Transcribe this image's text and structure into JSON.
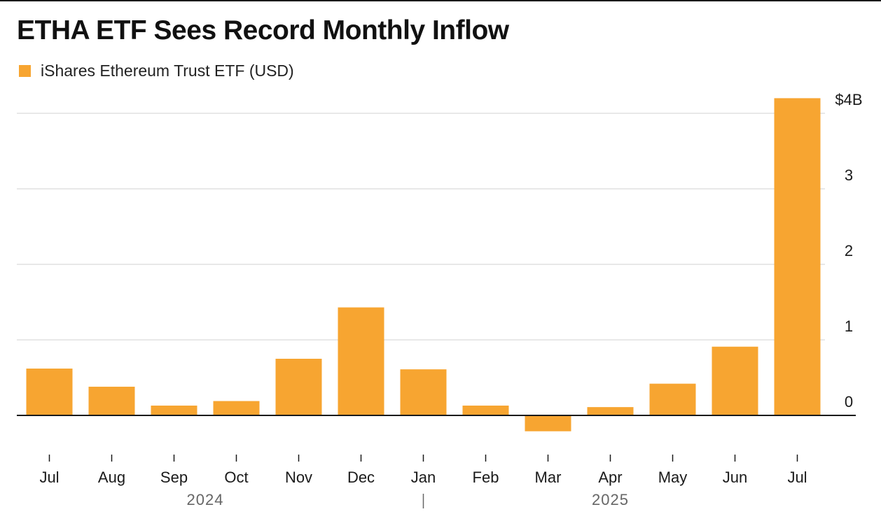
{
  "title": "ETHA ETF Sees Record Monthly Inflow",
  "colors": {
    "bar": "#F7A531",
    "grid": "#d9d9d9",
    "zero_line": "#1a1a1a",
    "text": "#1a1a1a",
    "year_text": "#666666"
  },
  "chart_data": {
    "type": "bar",
    "title": "ETHA ETF Sees Record Monthly Inflow",
    "legend_position": "top-left",
    "grid": true,
    "y_axis_side": "right",
    "categories": [
      "Jul",
      "Aug",
      "Sep",
      "Oct",
      "Nov",
      "Dec",
      "Jan",
      "Feb",
      "Mar",
      "Apr",
      "May",
      "Jun",
      "Jul"
    ],
    "year_labels": [
      {
        "label": "2024",
        "under": [
          "Jul",
          "Aug",
          "Sep",
          "Oct",
          "Nov",
          "Dec"
        ]
      },
      {
        "label": "2025",
        "under": [
          "Jan",
          "Feb",
          "Mar",
          "Apr",
          "May",
          "Jun",
          "Jul"
        ]
      }
    ],
    "series": [
      {
        "name": "iShares Ethereum Trust ETF (USD)",
        "values": [
          0.62,
          0.38,
          0.13,
          0.19,
          0.75,
          1.43,
          0.61,
          0.13,
          -0.21,
          0.11,
          0.42,
          0.91,
          4.2
        ]
      }
    ],
    "ylim": [
      -0.3,
      4.25
    ],
    "yticks": [
      0,
      1,
      2,
      3,
      4
    ],
    "ytick_labels": [
      "0",
      "1",
      "2",
      "3",
      "$4B"
    ],
    "xlabel": "",
    "ylabel": ""
  }
}
